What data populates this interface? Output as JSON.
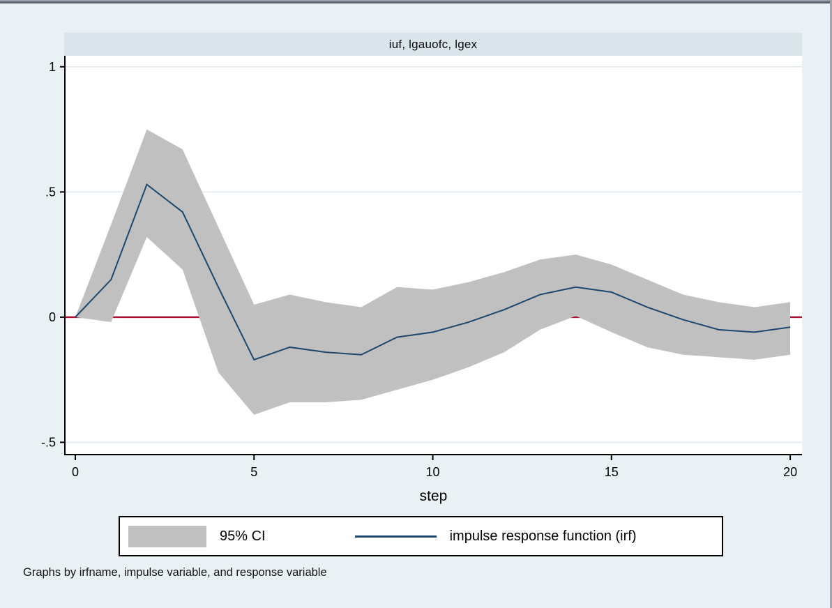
{
  "window": {
    "canvas_bg": "#eaf1f4",
    "top_edge_color": "#5d6470",
    "right_edge_color": "#a4a4a4"
  },
  "title_band": {
    "bg": "#d9e4eb"
  },
  "chart_data": {
    "type": "area",
    "subtype": "impulse-response-function with 95% confidence band",
    "title": "iuf, lgauofc, lgex",
    "xlabel": "step",
    "ylabel": "",
    "x_ticks": [
      0,
      5,
      10,
      15,
      20
    ],
    "y_ticks": [
      {
        "label": "1",
        "value": 1.0
      },
      {
        "label": ".5",
        "value": 0.5
      },
      {
        "label": "0",
        "value": 0.0
      },
      {
        "label": "-.5",
        "value": -0.5
      }
    ],
    "xlim": [
      -0.293,
      20.33
    ],
    "ylim": [
      -0.549,
      1.044
    ],
    "grid": true,
    "gridline_color": "#e2ebf2",
    "plot_bg": "#ffffff",
    "axis_color": "#000000",
    "zero_line": {
      "value": 0,
      "color": "#ab1233"
    },
    "x": [
      0,
      1,
      2,
      3,
      4,
      5,
      6,
      7,
      8,
      9,
      10,
      11,
      12,
      13,
      14,
      15,
      16,
      17,
      18,
      19,
      20
    ],
    "series": [
      {
        "name": "95% CI",
        "type": "band",
        "color": "#c0c0c0",
        "upper": [
          0,
          0.37,
          0.75,
          0.67,
          0.36,
          0.05,
          0.09,
          0.06,
          0.04,
          0.12,
          0.11,
          0.14,
          0.18,
          0.23,
          0.25,
          0.21,
          0.15,
          0.09,
          0.06,
          0.04,
          0.06
        ],
        "lower": [
          0,
          -0.02,
          0.32,
          0.19,
          -0.22,
          -0.39,
          -0.34,
          -0.34,
          -0.33,
          -0.29,
          -0.25,
          -0.2,
          -0.14,
          -0.05,
          0.005,
          -0.06,
          -0.12,
          -0.15,
          -0.16,
          -0.17,
          -0.15
        ]
      },
      {
        "name": "impulse response function (irf)",
        "type": "line",
        "color": "#1a476f",
        "values": [
          0,
          0.15,
          0.53,
          0.42,
          0.12,
          -0.17,
          -0.12,
          -0.14,
          -0.15,
          -0.08,
          -0.06,
          -0.02,
          0.03,
          0.09,
          0.12,
          0.1,
          0.04,
          -0.01,
          -0.05,
          -0.06,
          -0.04
        ]
      }
    ],
    "legend_position": "bottom-center"
  },
  "legend": {
    "entries": [
      {
        "swatch": "area",
        "label": "95% CI"
      },
      {
        "swatch": "line",
        "label": "impulse response function (irf)"
      }
    ]
  },
  "footer": {
    "note": "Graphs by irfname, impulse variable, and response variable"
  }
}
